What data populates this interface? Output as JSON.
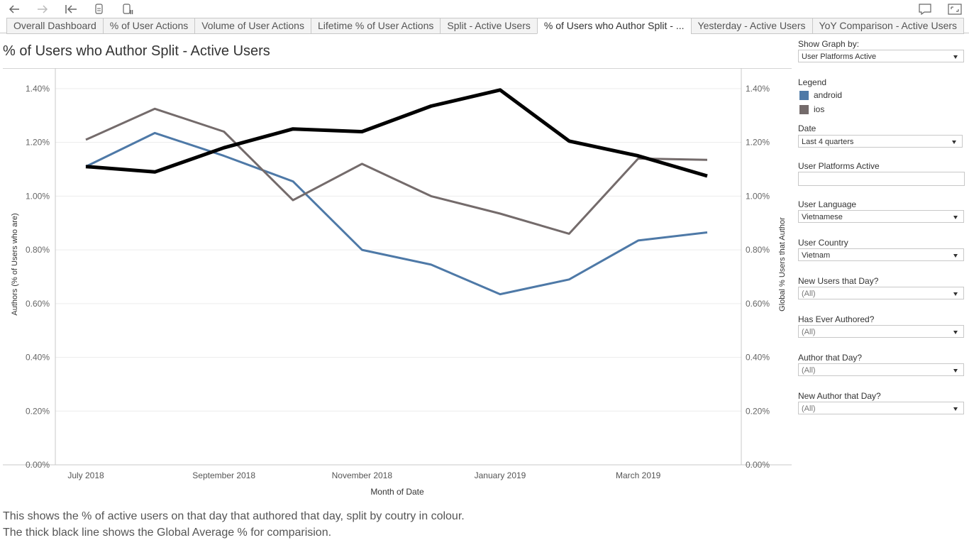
{
  "toolbar": {
    "icons": [
      "back-icon",
      "forward-icon",
      "revert-icon",
      "refresh-data-icon",
      "pause-icon",
      "comment-icon",
      "fullscreen-icon"
    ]
  },
  "tabs": [
    {
      "label": "Overall Dashboard",
      "active": false
    },
    {
      "label": "% of User Actions",
      "active": false
    },
    {
      "label": "Volume of User Actions",
      "active": false
    },
    {
      "label": "Lifetime % of User Actions",
      "active": false
    },
    {
      "label": "Split - Active Users",
      "active": false
    },
    {
      "label": "% of Users who Author Split - ...",
      "active": true
    },
    {
      "label": "Yesterday - Active Users",
      "active": false
    },
    {
      "label": "YoY Comparison - Active Users",
      "active": false
    }
  ],
  "page_title": "% of Users who Author Split - Active Users",
  "captions": [
    "This shows the % of active users on that day that authored that day, split by coutry in colour.",
    "The thick black line shows the Global Average % for comparision."
  ],
  "filters": {
    "show_graph_by": {
      "label": "Show Graph by:",
      "value": "User Platforms Active"
    },
    "legend": {
      "title": "Legend",
      "items": [
        {
          "label": "android",
          "color": "#4e79a7"
        },
        {
          "label": "ios",
          "color": "#746b6b"
        }
      ]
    },
    "date": {
      "label": "Date",
      "value": "Last 4 quarters"
    },
    "user_platforms_active": {
      "label": "User Platforms Active",
      "value": ""
    },
    "user_language": {
      "label": "User Language",
      "value": "Vietnamese"
    },
    "user_country": {
      "label": "User Country",
      "value": "Vietnam"
    },
    "new_users": {
      "label": "New Users that Day?",
      "value": "(All)"
    },
    "has_ever_authored": {
      "label": "Has Ever Authored?",
      "value": "(All)"
    },
    "author_that_day": {
      "label": "Author that Day?",
      "value": "(All)"
    },
    "new_author": {
      "label": "New Author that Day?",
      "value": "(All)"
    }
  },
  "chart_data": {
    "type": "line",
    "x": [
      "2018-07",
      "2018-08",
      "2018-09",
      "2018-10",
      "2018-11",
      "2018-12",
      "2019-01",
      "2019-02",
      "2019-03",
      "2019-04"
    ],
    "x_tick_labels": [
      {
        "at": "2018-07",
        "label": "July 2018"
      },
      {
        "at": "2018-09",
        "label": "September 2018"
      },
      {
        "at": "2018-11",
        "label": "November 2018"
      },
      {
        "at": "2019-01",
        "label": "January 2019"
      },
      {
        "at": "2019-03",
        "label": "March 2019"
      }
    ],
    "xlabel": "Month of Date",
    "ylabel": "Authors (% of Users who are)",
    "ylabel_right": "Global % Users that Author",
    "ylim": [
      0,
      1.45
    ],
    "yticks": [
      "0.00%",
      "0.20%",
      "0.40%",
      "0.60%",
      "0.80%",
      "1.00%",
      "1.20%",
      "1.40%"
    ],
    "series": [
      {
        "name": "android",
        "color": "#4e79a7",
        "values": [
          1.11,
          1.235,
          1.15,
          1.055,
          0.8,
          0.745,
          0.635,
          0.69,
          0.835,
          0.865
        ]
      },
      {
        "name": "ios",
        "color": "#746b6b",
        "values": [
          1.21,
          1.325,
          1.24,
          0.985,
          1.12,
          1.0,
          0.935,
          0.86,
          1.14,
          1.135
        ]
      },
      {
        "color": "#000000",
        "values": [
          1.11,
          1.09,
          1.18,
          1.25,
          1.24,
          1.335,
          1.395,
          1.205,
          1.15,
          1.075
        ]
      }
    ]
  }
}
